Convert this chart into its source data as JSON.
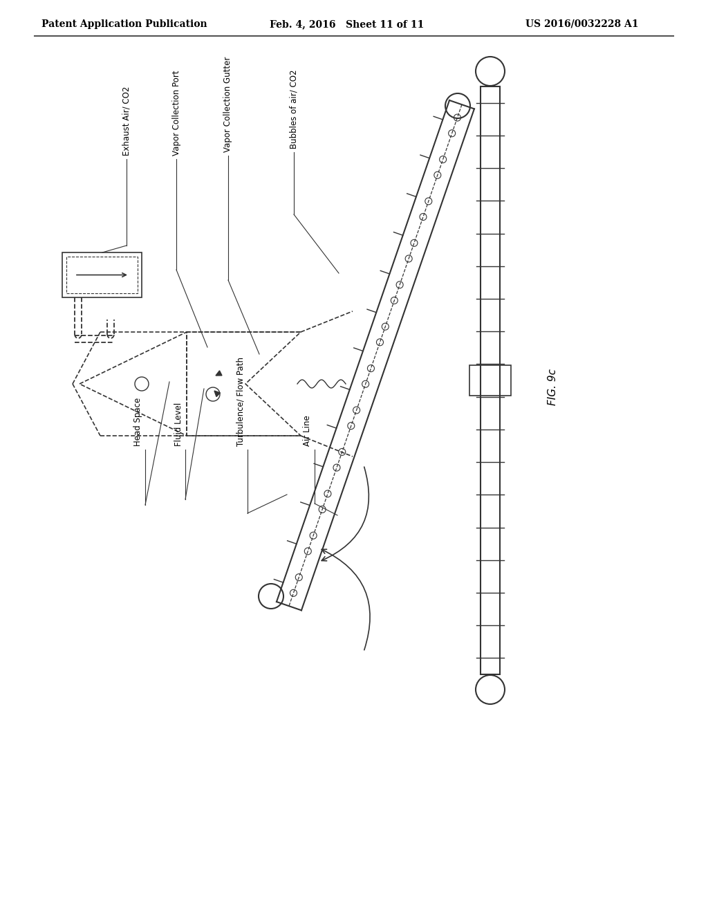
{
  "header_left": "Patent Application Publication",
  "header_center": "Feb. 4, 2016   Sheet 11 of 11",
  "header_right": "US 2016/0032228 A1",
  "fig_label": "FIG. 9c",
  "labels": {
    "exhaust_air": "Exhaust Air/ CO2",
    "vapor_port": "Vapor Collection Port",
    "vapor_gutter": "Vapor Collection Gutter",
    "bubbles": "Bubbles of air/ CO2",
    "head_space": "Head Space",
    "fluid_level": "Fluid Level",
    "turbulence": "Turbulence/ Flow Path",
    "air_line": "Air Line"
  },
  "bg_color": "#ffffff",
  "line_color": "#333333",
  "text_color": "#000000"
}
